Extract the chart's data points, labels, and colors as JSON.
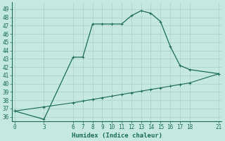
{
  "xlabel": "Humidex (Indice chaleur)",
  "bg_color": "#c5e8e0",
  "grid_color": "#aed4cc",
  "line_color": "#1a6b5a",
  "line1_x": [
    0,
    3,
    6,
    7,
    8,
    9,
    10,
    11,
    12,
    13,
    14,
    15,
    16,
    17,
    18,
    21
  ],
  "line1_y": [
    36.7,
    35.7,
    43.2,
    43.2,
    47.2,
    47.2,
    47.2,
    47.2,
    48.2,
    48.8,
    48.5,
    47.5,
    44.5,
    42.2,
    41.7,
    41.2
  ],
  "line2_x": [
    0,
    3,
    6,
    7,
    8,
    9,
    10,
    11,
    12,
    13,
    14,
    15,
    16,
    17,
    18,
    21
  ],
  "line2_y": [
    36.7,
    37.2,
    37.7,
    37.9,
    38.1,
    38.3,
    38.5,
    38.7,
    38.9,
    39.1,
    39.3,
    39.5,
    39.7,
    39.9,
    40.1,
    41.2
  ],
  "xticks": [
    0,
    3,
    6,
    7,
    8,
    9,
    10,
    11,
    12,
    13,
    14,
    15,
    16,
    17,
    18,
    21
  ],
  "yticks": [
    36,
    37,
    38,
    39,
    40,
    41,
    42,
    43,
    44,
    45,
    46,
    47,
    48,
    49
  ],
  "xlim": [
    -0.3,
    21.3
  ],
  "ylim": [
    35.5,
    49.8
  ],
  "xlabel_fontsize": 6.5,
  "tick_fontsize": 5.5
}
